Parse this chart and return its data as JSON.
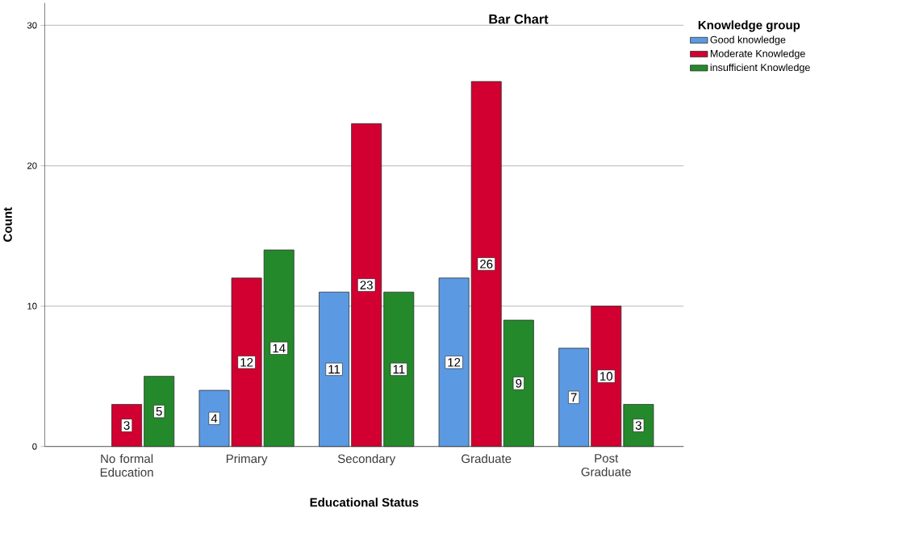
{
  "chart_data": {
    "type": "bar",
    "title": "Bar Chart",
    "xlabel": "Educational Status",
    "ylabel": "Count",
    "legend_title": "Knowledge group",
    "categories": [
      "No formal Education",
      "Primary",
      "Secondary",
      "Graduate",
      "Post Graduate"
    ],
    "series": [
      {
        "name": "Good knowledge",
        "color": "#5b9ae3",
        "values": [
          null,
          4,
          11,
          12,
          7
        ]
      },
      {
        "name": "Moderate Knowledge",
        "color": "#d10030",
        "values": [
          3,
          12,
          23,
          26,
          10
        ]
      },
      {
        "name": "insufficient Knowledge",
        "color": "#24892b",
        "values": [
          5,
          14,
          11,
          9,
          3
        ]
      }
    ],
    "ylim": [
      0,
      31.6
    ],
    "yticks": [
      0,
      10,
      20,
      30
    ],
    "grid": "y",
    "legend": "top right",
    "data_labels": true
  }
}
